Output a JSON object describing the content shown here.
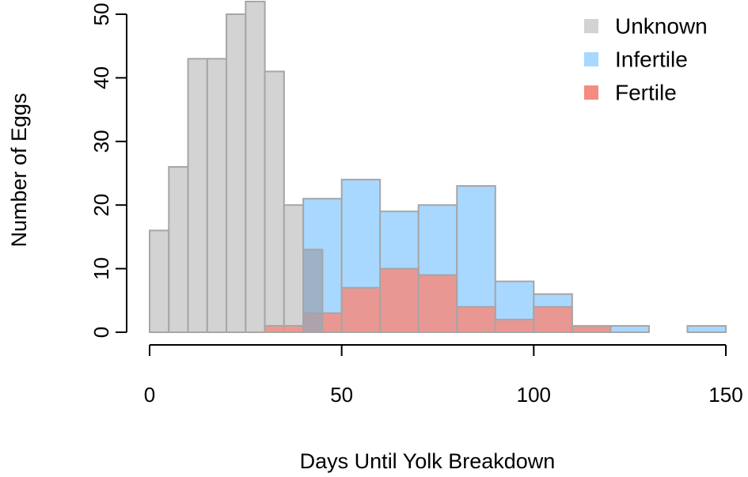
{
  "chart_data": {
    "type": "bar",
    "title": "",
    "xlabel": "Days Until Yolk Breakdown",
    "ylabel": "Number of Eggs",
    "xlim": [
      0,
      150
    ],
    "ylim": [
      0,
      52
    ],
    "x_ticks": [
      0,
      50,
      100,
      150
    ],
    "y_ticks": [
      0,
      10,
      20,
      30,
      40,
      50
    ],
    "grid": false,
    "legend_position": "top-right",
    "series": [
      {
        "name": "Unknown",
        "color": "#d3d3d3",
        "bins": [
          {
            "x0": 0,
            "x1": 5,
            "count": 16
          },
          {
            "x0": 5,
            "x1": 10,
            "count": 26
          },
          {
            "x0": 10,
            "x1": 15,
            "count": 43
          },
          {
            "x0": 15,
            "x1": 20,
            "count": 43
          },
          {
            "x0": 20,
            "x1": 25,
            "count": 50
          },
          {
            "x0": 25,
            "x1": 30,
            "count": 52
          },
          {
            "x0": 30,
            "x1": 35,
            "count": 41
          },
          {
            "x0": 35,
            "x1": 40,
            "count": 20
          },
          {
            "x0": 40,
            "x1": 45,
            "count": 13
          }
        ]
      },
      {
        "name": "Infertile",
        "color": "#a8d8ff",
        "bins": [
          {
            "x0": 40,
            "x1": 50,
            "count": 21
          },
          {
            "x0": 50,
            "x1": 60,
            "count": 24
          },
          {
            "x0": 60,
            "x1": 70,
            "count": 19
          },
          {
            "x0": 70,
            "x1": 80,
            "count": 20
          },
          {
            "x0": 80,
            "x1": 90,
            "count": 23
          },
          {
            "x0": 90,
            "x1": 100,
            "count": 8
          },
          {
            "x0": 100,
            "x1": 110,
            "count": 6
          },
          {
            "x0": 110,
            "x1": 120,
            "count": 1
          },
          {
            "x0": 120,
            "x1": 130,
            "count": 1
          },
          {
            "x0": 130,
            "x1": 140,
            "count": 0
          },
          {
            "x0": 140,
            "x1": 150,
            "count": 1
          }
        ]
      },
      {
        "name": "Fertile",
        "color": "#f48c80",
        "bins": [
          {
            "x0": 30,
            "x1": 40,
            "count": 1
          },
          {
            "x0": 40,
            "x1": 50,
            "count": 3
          },
          {
            "x0": 50,
            "x1": 60,
            "count": 7
          },
          {
            "x0": 60,
            "x1": 70,
            "count": 10
          },
          {
            "x0": 70,
            "x1": 80,
            "count": 9
          },
          {
            "x0": 80,
            "x1": 90,
            "count": 4
          },
          {
            "x0": 90,
            "x1": 100,
            "count": 2
          },
          {
            "x0": 100,
            "x1": 110,
            "count": 4
          },
          {
            "x0": 110,
            "x1": 120,
            "count": 1
          }
        ]
      }
    ]
  }
}
